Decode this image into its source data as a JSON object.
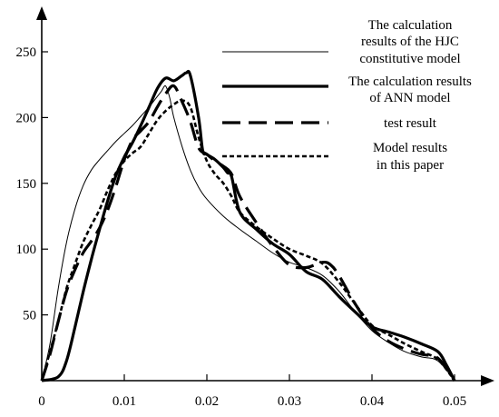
{
  "chart_data": {
    "type": "line",
    "title": "",
    "xlabel": "",
    "ylabel": "",
    "xlim": [
      0,
      0.05
    ],
    "ylim": [
      0,
      250
    ],
    "x_ticks": [
      {
        "value": 0,
        "label": "0"
      },
      {
        "value": 0.01,
        "label": "0.01"
      },
      {
        "value": 0.02,
        "label": "0.02"
      },
      {
        "value": 0.03,
        "label": "0.03"
      },
      {
        "value": 0.04,
        "label": "0.04"
      },
      {
        "value": 0.05,
        "label": "0.05"
      }
    ],
    "y_ticks": [
      {
        "value": 50,
        "label": "50"
      },
      {
        "value": 100,
        "label": "100"
      },
      {
        "value": 150,
        "label": "150"
      },
      {
        "value": 200,
        "label": "200"
      },
      {
        "value": 250,
        "label": "250"
      }
    ],
    "grid": false,
    "legend_position": "top-right",
    "series": [
      {
        "name": "The calculation results of the HJC constitutive model",
        "legend_lines": [
          "The calculation",
          "results of the HJC",
          "constitutive model"
        ],
        "style": "thin-solid",
        "x": [
          0,
          0.001,
          0.002,
          0.003,
          0.004,
          0.005,
          0.006,
          0.007,
          0.008,
          0.009,
          0.01,
          0.011,
          0.012,
          0.013,
          0.014,
          0.0145,
          0.015,
          0.0155,
          0.016,
          0.017,
          0.018,
          0.019,
          0.02,
          0.022,
          0.024,
          0.026,
          0.028,
          0.03,
          0.032,
          0.034,
          0.036,
          0.038,
          0.04,
          0.042,
          0.044,
          0.046,
          0.048,
          0.05
        ],
        "y": [
          0,
          28,
          70,
          105,
          130,
          148,
          160,
          168,
          175,
          182,
          188,
          194,
          201,
          208,
          216,
          220,
          224,
          215,
          200,
          178,
          160,
          147,
          138,
          125,
          115,
          106,
          97,
          90,
          86,
          80,
          68,
          52,
          38,
          29,
          22,
          18,
          15,
          0
        ]
      },
      {
        "name": "The calculation results of ANN model",
        "legend_lines": [
          "The calculation results",
          "of ANN model"
        ],
        "style": "thick-solid",
        "x": [
          0,
          0.002,
          0.003,
          0.004,
          0.005,
          0.006,
          0.007,
          0.008,
          0.009,
          0.01,
          0.011,
          0.012,
          0.013,
          0.014,
          0.015,
          0.016,
          0.017,
          0.0175,
          0.018,
          0.019,
          0.0195,
          0.02,
          0.021,
          0.022,
          0.0225,
          0.023,
          0.024,
          0.026,
          0.028,
          0.03,
          0.032,
          0.034,
          0.036,
          0.038,
          0.04,
          0.042,
          0.044,
          0.046,
          0.048,
          0.049,
          0.05
        ],
        "y": [
          0,
          3,
          15,
          40,
          67,
          92,
          115,
          137,
          156,
          170,
          181,
          194,
          208,
          222,
          230,
          228,
          232,
          234,
          232,
          200,
          175,
          172,
          168,
          162,
          158,
          155,
          128,
          115,
          104,
          96,
          83,
          77,
          64,
          52,
          41,
          37,
          33,
          28,
          22,
          12,
          0
        ]
      },
      {
        "name": "test result",
        "legend_lines": [
          "test result"
        ],
        "style": "long-dash",
        "x": [
          0,
          0.001,
          0.002,
          0.003,
          0.004,
          0.005,
          0.006,
          0.007,
          0.008,
          0.009,
          0.01,
          0.011,
          0.012,
          0.013,
          0.014,
          0.015,
          0.016,
          0.017,
          0.018,
          0.019,
          0.02,
          0.021,
          0.022,
          0.023,
          0.024,
          0.026,
          0.028,
          0.03,
          0.032,
          0.034,
          0.035,
          0.036,
          0.038,
          0.04,
          0.042,
          0.044,
          0.046,
          0.048,
          0.05
        ],
        "y": [
          0,
          20,
          45,
          68,
          84,
          97,
          106,
          116,
          130,
          148,
          168,
          183,
          190,
          197,
          208,
          218,
          224,
          212,
          197,
          177,
          172,
          167,
          163,
          157,
          140,
          120,
          102,
          88,
          86,
          90,
          88,
          80,
          58,
          40,
          30,
          24,
          20,
          17,
          0
        ]
      },
      {
        "name": "Model results in this paper",
        "legend_lines": [
          "Model results",
          "in this paper"
        ],
        "style": "short-dash",
        "x": [
          0,
          0.001,
          0.002,
          0.003,
          0.004,
          0.005,
          0.006,
          0.007,
          0.008,
          0.009,
          0.01,
          0.011,
          0.012,
          0.013,
          0.014,
          0.015,
          0.016,
          0.017,
          0.018,
          0.019,
          0.02,
          0.021,
          0.022,
          0.023,
          0.024,
          0.026,
          0.028,
          0.03,
          0.032,
          0.034,
          0.036,
          0.038,
          0.04,
          0.042,
          0.044,
          0.046,
          0.048,
          0.05
        ],
        "y": [
          0,
          22,
          45,
          70,
          88,
          105,
          118,
          130,
          145,
          158,
          167,
          173,
          178,
          188,
          198,
          205,
          210,
          213,
          208,
          185,
          167,
          157,
          150,
          140,
          128,
          117,
          108,
          100,
          95,
          89,
          75,
          58,
          42,
          35,
          28,
          22,
          16,
          0
        ]
      }
    ]
  }
}
